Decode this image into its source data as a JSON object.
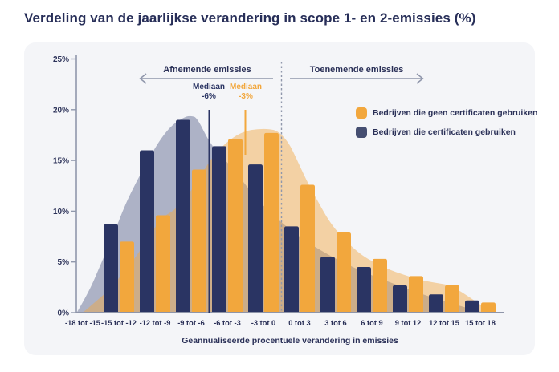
{
  "page": {
    "title": "Verdeling van de jaarlijkse verandering in scope 1- en 2-emissies (%)"
  },
  "chart": {
    "zones": {
      "decreasing": "Afnemende emissies",
      "increasing": "Toenemende emissies"
    },
    "medians": {
      "certificates": {
        "label": "Mediaan",
        "value": "-6%"
      },
      "no_certificates": {
        "label": "Mediaan",
        "value": "-3%"
      }
    },
    "legend": [
      {
        "label": "Bedrijven die geen certificaten gebruiken",
        "color": "#f2a73d"
      },
      {
        "label": "Bedrijven die certificaten gebruiken",
        "color": "#454e71"
      }
    ]
  },
  "chart_data": {
    "type": "bar",
    "title": "Verdeling van de jaarlijkse verandering in scope 1- en 2-emissies (%)",
    "xlabel": "Geannualiseerde procentuele verandering in emissies",
    "ylabel": "",
    "ylim": [
      0,
      25
    ],
    "yticks": [
      "0%",
      "5%",
      "10%",
      "15%",
      "20%",
      "25%"
    ],
    "grid": false,
    "legend_position": "upper right",
    "categories": [
      "-18 tot -15",
      "-15 tot -12",
      "-12 tot -9",
      "-9 tot -6",
      "-6 tot -3",
      "-3 tot 0",
      "0 tot 3",
      "3 tot 6",
      "6 tot 9",
      "9 tot 12",
      "12 tot 15",
      "15 tot 18"
    ],
    "series": [
      {
        "name": "Bedrijven die geen certificaten gebruiken",
        "color": "#f2a73d",
        "values": [
          0,
          7.0,
          9.6,
          14.1,
          17.1,
          17.7,
          12.6,
          7.9,
          5.3,
          3.6,
          2.7,
          1.0
        ]
      },
      {
        "name": "Bedrijven die certificaten gebruiken",
        "color": "#2a3463",
        "values": [
          0,
          8.7,
          16.0,
          19.0,
          16.4,
          14.6,
          8.5,
          5.5,
          4.5,
          2.7,
          1.8,
          1.2
        ]
      }
    ],
    "annotations": {
      "zero_line_x": 0,
      "median_certificates_pct": -6,
      "median_no_certificates_pct": -3
    },
    "density_curves": [
      {
        "name": "certificaten",
        "fill": "rgba(74,86,128,0.42)",
        "points": [
          [
            -17,
            0
          ],
          [
            -16,
            2
          ],
          [
            -15,
            4.8
          ],
          [
            -14,
            7.5
          ],
          [
            -13,
            10.6
          ],
          [
            -12,
            13
          ],
          [
            -11,
            15.2
          ],
          [
            -10,
            17.2
          ],
          [
            -9,
            18.6
          ],
          [
            -8,
            19.3
          ],
          [
            -7.5,
            19.4
          ],
          [
            -7,
            19.2
          ],
          [
            -6,
            16.8
          ],
          [
            -5,
            15.4
          ],
          [
            -4,
            14.2
          ],
          [
            -3,
            12.6
          ],
          [
            -2,
            11.2
          ],
          [
            -1,
            9.9
          ],
          [
            0,
            8.9
          ],
          [
            1,
            7.9
          ],
          [
            2,
            7.1
          ],
          [
            3,
            6.3
          ],
          [
            5,
            5.0
          ],
          [
            7,
            3.9
          ],
          [
            9,
            3.0
          ],
          [
            11,
            2.1
          ],
          [
            13,
            1.3
          ],
          [
            15,
            0.6
          ],
          [
            16.5,
            0.1
          ],
          [
            17,
            0
          ]
        ]
      },
      {
        "name": "geen certificaten",
        "fill": "rgba(242,167,61,0.45)",
        "points": [
          [
            -16.5,
            0
          ],
          [
            -15,
            1.5
          ],
          [
            -14,
            2.6
          ],
          [
            -13,
            4.2
          ],
          [
            -12,
            5.6
          ],
          [
            -11,
            7.6
          ],
          [
            -10,
            9.2
          ],
          [
            -9.5,
            9.7
          ],
          [
            -9,
            10.0
          ],
          [
            -8,
            11.2
          ],
          [
            -7,
            12.9
          ],
          [
            -6,
            14.9
          ],
          [
            -5,
            16.3
          ],
          [
            -4,
            17.3
          ],
          [
            -3,
            17.9
          ],
          [
            -2,
            18.1
          ],
          [
            -1,
            18.1
          ],
          [
            -0.3,
            17.9
          ],
          [
            0.5,
            16.9
          ],
          [
            1,
            15.8
          ],
          [
            2,
            13.2
          ],
          [
            3,
            11.0
          ],
          [
            4,
            8.9
          ],
          [
            5,
            7.5
          ],
          [
            6,
            6.3
          ],
          [
            7,
            5.4
          ],
          [
            8,
            4.8
          ],
          [
            9,
            4.2
          ],
          [
            10,
            3.8
          ],
          [
            11,
            3.4
          ],
          [
            12,
            3.1
          ],
          [
            13,
            2.9
          ],
          [
            14,
            2.7
          ],
          [
            15,
            2.0
          ],
          [
            16,
            1.2
          ],
          [
            17,
            0.4
          ],
          [
            17.5,
            0
          ]
        ]
      }
    ]
  }
}
